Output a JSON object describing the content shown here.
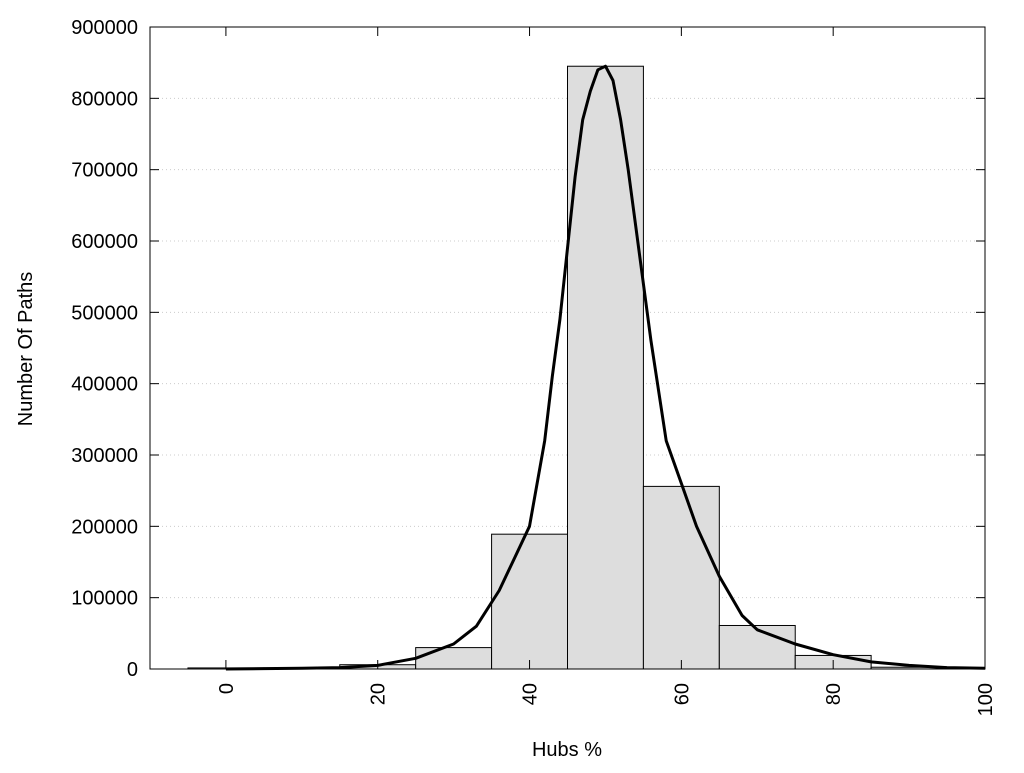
{
  "chart_data": {
    "type": "bar",
    "title": "",
    "xlabel": "Hubs %",
    "ylabel": "Number Of Paths",
    "xlim": [
      -10,
      100
    ],
    "ylim": [
      0,
      900000
    ],
    "grid": true,
    "x_ticks": [
      "0",
      "20",
      "40",
      "60",
      "80",
      "100"
    ],
    "y_ticks": [
      "0",
      "100000",
      "200000",
      "300000",
      "400000",
      "500000",
      "600000",
      "700000",
      "800000",
      "900000"
    ],
    "bins": [
      {
        "x_start": -5,
        "x_end": 5,
        "value": 1500
      },
      {
        "x_start": 5,
        "x_end": 15,
        "value": 1500
      },
      {
        "x_start": 15,
        "x_end": 25,
        "value": 6000
      },
      {
        "x_start": 25,
        "x_end": 35,
        "value": 30000
      },
      {
        "x_start": 35,
        "x_end": 45,
        "value": 189000
      },
      {
        "x_start": 45,
        "x_end": 55,
        "value": 845000
      },
      {
        "x_start": 55,
        "x_end": 65,
        "value": 256000
      },
      {
        "x_start": 65,
        "x_end": 75,
        "value": 61000
      },
      {
        "x_start": 75,
        "x_end": 85,
        "value": 19000
      },
      {
        "x_start": 85,
        "x_end": 95,
        "value": 2500
      }
    ],
    "fit_curve": {
      "x": [
        0,
        5,
        10,
        15,
        20,
        25,
        30,
        33,
        36,
        38,
        40,
        42,
        43,
        44,
        45,
        46,
        47,
        48,
        49,
        50,
        51,
        52,
        53,
        54,
        55,
        56,
        58,
        60,
        62,
        65,
        68,
        70,
        75,
        80,
        85,
        90,
        95,
        100
      ],
      "y": [
        0,
        500,
        1000,
        2000,
        5000,
        15000,
        35000,
        60000,
        110000,
        155000,
        200000,
        320000,
        410000,
        490000,
        590000,
        690000,
        770000,
        810000,
        840000,
        845000,
        825000,
        770000,
        700000,
        620000,
        540000,
        460000,
        320000,
        260000,
        200000,
        130000,
        75000,
        55000,
        35000,
        20000,
        10000,
        5000,
        2000,
        1000
      ]
    },
    "bar_fill": "#dddddd",
    "bar_stroke": "#000000",
    "curve_color": "#000000",
    "grid_color": "#cccccc"
  }
}
